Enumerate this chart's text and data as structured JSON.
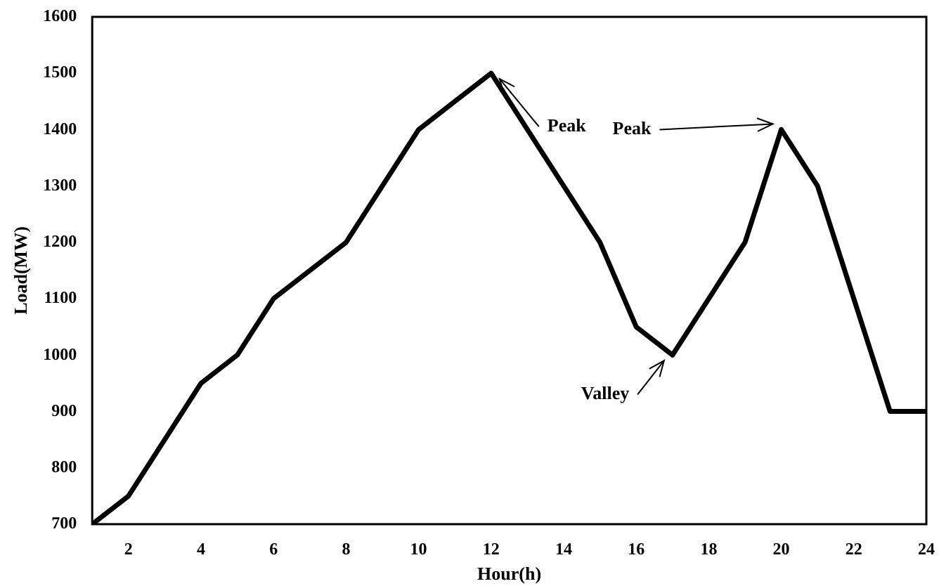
{
  "chart_data": {
    "type": "line",
    "xlabel": "Hour(h)",
    "ylabel": "Load(MW)",
    "x": [
      1,
      2,
      3,
      4,
      5,
      6,
      7,
      8,
      9,
      10,
      11,
      12,
      13,
      14,
      15,
      16,
      17,
      18,
      19,
      20,
      21,
      22,
      23,
      24
    ],
    "values": [
      700,
      750,
      850,
      950,
      1000,
      1100,
      1150,
      1200,
      1300,
      1400,
      1450,
      1500,
      1400,
      1300,
      1200,
      1050,
      1000,
      1100,
      1200,
      1400,
      1300,
      1100,
      900,
      900
    ],
    "color": "#000000",
    "xlim": [
      1,
      24
    ],
    "xticks": [
      2,
      4,
      6,
      8,
      10,
      12,
      14,
      16,
      18,
      20,
      22,
      24
    ],
    "ylim": [
      700,
      1600
    ],
    "yticks": [
      700,
      800,
      900,
      1000,
      1100,
      1200,
      1300,
      1400,
      1500,
      1600
    ],
    "grid": false,
    "legend": false,
    "marker": "none",
    "line_style": "solid",
    "annotations": [
      {
        "text": "Peak",
        "x": 12,
        "y": 1500
      },
      {
        "text": "Peak",
        "x": 20,
        "y": 1400
      },
      {
        "text": "Valley",
        "x": 17,
        "y": 1000
      }
    ]
  }
}
